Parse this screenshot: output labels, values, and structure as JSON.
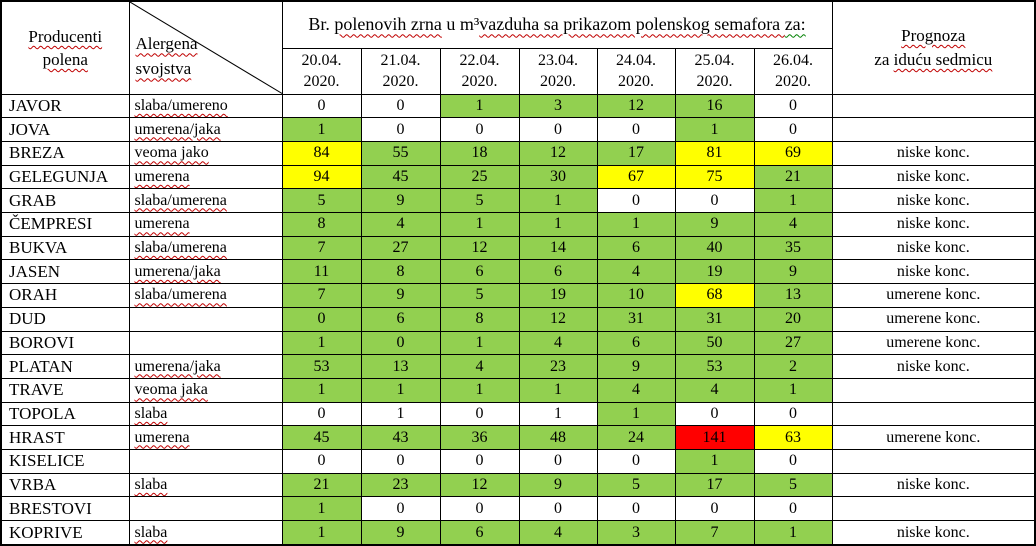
{
  "header": {
    "producenti_line1": "Producenti",
    "producenti_line2": "polena",
    "alergena_line1": "Alergena",
    "alergena_line2": "svojstva",
    "main_title_segments": [
      {
        "t": "Br. ",
        "u": "none"
      },
      {
        "t": "polenovih zrna",
        "u": "red"
      },
      {
        "t": " u m³",
        "u": "none"
      },
      {
        "t": "vazduha sa prikazom polenskog semafora ",
        "u": "red"
      },
      {
        "t": "za:",
        "u": "green"
      }
    ],
    "prognoza_line1": "Prognoza",
    "prognoza_line2_prefix": "za ",
    "prognoza_line2_sq": "iduću sedmicu",
    "year_label": "2020.",
    "dates": [
      "20.04.",
      "21.04.",
      "22.04.",
      "23.04.",
      "24.04.",
      "25.04.",
      "26.04."
    ]
  },
  "semaphore_colors": {
    "g": "#92D050",
    "y": "#FFFF00",
    "r": "#FF0000",
    "w": "#FFFFFF"
  },
  "rows": [
    {
      "name": "JAVOR",
      "allergen": "slaba/umereno",
      "values": [
        0,
        0,
        1,
        3,
        12,
        16,
        0
      ],
      "colors": [
        "w",
        "w",
        "g",
        "g",
        "g",
        "g",
        "w"
      ],
      "forecast": ""
    },
    {
      "name": "JOVA",
      "allergen": "umerena/jaka",
      "values": [
        1,
        0,
        0,
        0,
        0,
        1,
        0
      ],
      "colors": [
        "g",
        "w",
        "w",
        "w",
        "w",
        "g",
        "w"
      ],
      "forecast": ""
    },
    {
      "name": "BREZA",
      "allergen": "veoma jako",
      "values": [
        84,
        55,
        18,
        12,
        17,
        81,
        69
      ],
      "colors": [
        "y",
        "g",
        "g",
        "g",
        "g",
        "y",
        "y"
      ],
      "forecast": "niske konc."
    },
    {
      "name": "GELEGUNJA",
      "allergen": "umerena",
      "values": [
        94,
        45,
        25,
        30,
        67,
        75,
        21
      ],
      "colors": [
        "y",
        "g",
        "g",
        "g",
        "y",
        "y",
        "g"
      ],
      "forecast": "niske konc."
    },
    {
      "name": "GRAB",
      "allergen": "slaba/umerena",
      "values": [
        5,
        9,
        5,
        1,
        0,
        0,
        1
      ],
      "colors": [
        "g",
        "g",
        "g",
        "g",
        "w",
        "w",
        "g"
      ],
      "forecast": "niske konc."
    },
    {
      "name": "ČEMPRESI",
      "allergen": "umerena",
      "values": [
        8,
        4,
        1,
        1,
        1,
        9,
        4
      ],
      "colors": [
        "g",
        "g",
        "g",
        "g",
        "g",
        "g",
        "g"
      ],
      "forecast": "niske konc."
    },
    {
      "name": "BUKVA",
      "allergen": "slaba/umerena",
      "values": [
        7,
        27,
        12,
        14,
        6,
        40,
        35
      ],
      "colors": [
        "g",
        "g",
        "g",
        "g",
        "g",
        "g",
        "g"
      ],
      "forecast": "niske konc."
    },
    {
      "name": "JASEN",
      "allergen": "umerena/jaka",
      "values": [
        11,
        8,
        6,
        6,
        4,
        19,
        9
      ],
      "colors": [
        "g",
        "g",
        "g",
        "g",
        "g",
        "g",
        "g"
      ],
      "forecast": "niske konc."
    },
    {
      "name": "ORAH",
      "allergen": "slaba/umerena",
      "values": [
        7,
        9,
        5,
        19,
        10,
        68,
        13
      ],
      "colors": [
        "g",
        "g",
        "g",
        "g",
        "g",
        "y",
        "g"
      ],
      "forecast": "umerene konc."
    },
    {
      "name": "DUD",
      "allergen": "",
      "values": [
        0,
        6,
        8,
        12,
        31,
        31,
        20
      ],
      "colors": [
        "g",
        "g",
        "g",
        "g",
        "g",
        "g",
        "g"
      ],
      "forecast": "umerene konc."
    },
    {
      "name": "BOROVI",
      "allergen": "",
      "values": [
        1,
        0,
        1,
        4,
        6,
        50,
        27
      ],
      "colors": [
        "g",
        "g",
        "g",
        "g",
        "g",
        "g",
        "g"
      ],
      "forecast": "umerene konc."
    },
    {
      "name": "PLATAN",
      "allergen": "umerena/jaka",
      "values": [
        53,
        13,
        4,
        23,
        9,
        53,
        2
      ],
      "colors": [
        "g",
        "g",
        "g",
        "g",
        "g",
        "g",
        "g"
      ],
      "forecast": "niske konc."
    },
    {
      "name": "TRAVE",
      "allergen": "veoma jaka",
      "values": [
        1,
        1,
        1,
        1,
        4,
        4,
        1
      ],
      "colors": [
        "g",
        "g",
        "g",
        "g",
        "g",
        "g",
        "g"
      ],
      "forecast": ""
    },
    {
      "name": "TOPOLA",
      "allergen": "slaba",
      "values": [
        0,
        1,
        0,
        1,
        1,
        0,
        0
      ],
      "colors": [
        "w",
        "w",
        "w",
        "w",
        "g",
        "w",
        "w"
      ],
      "forecast": ""
    },
    {
      "name": "HRAST",
      "allergen": "umerena",
      "values": [
        45,
        43,
        36,
        48,
        24,
        141,
        63
      ],
      "colors": [
        "g",
        "g",
        "g",
        "g",
        "g",
        "r",
        "y"
      ],
      "forecast": "umerene konc."
    },
    {
      "name": "KISELICE",
      "allergen": "",
      "values": [
        0,
        0,
        0,
        0,
        0,
        1,
        0
      ],
      "colors": [
        "w",
        "w",
        "w",
        "w",
        "w",
        "g",
        "w"
      ],
      "forecast": ""
    },
    {
      "name": "VRBA",
      "allergen": "slaba",
      "values": [
        21,
        23,
        12,
        9,
        5,
        17,
        5
      ],
      "colors": [
        "g",
        "g",
        "g",
        "g",
        "g",
        "g",
        "g"
      ],
      "forecast": "niske konc."
    },
    {
      "name": "BRESTOVI",
      "allergen": "",
      "values": [
        1,
        0,
        0,
        0,
        0,
        0,
        0
      ],
      "colors": [
        "g",
        "w",
        "w",
        "w",
        "w",
        "w",
        "w"
      ],
      "forecast": ""
    },
    {
      "name": "KOPRIVE",
      "allergen": "slaba",
      "values": [
        1,
        9,
        6,
        4,
        3,
        7,
        1
      ],
      "colors": [
        "g",
        "g",
        "g",
        "g",
        "g",
        "g",
        "g"
      ],
      "forecast": "niske konc."
    }
  ]
}
